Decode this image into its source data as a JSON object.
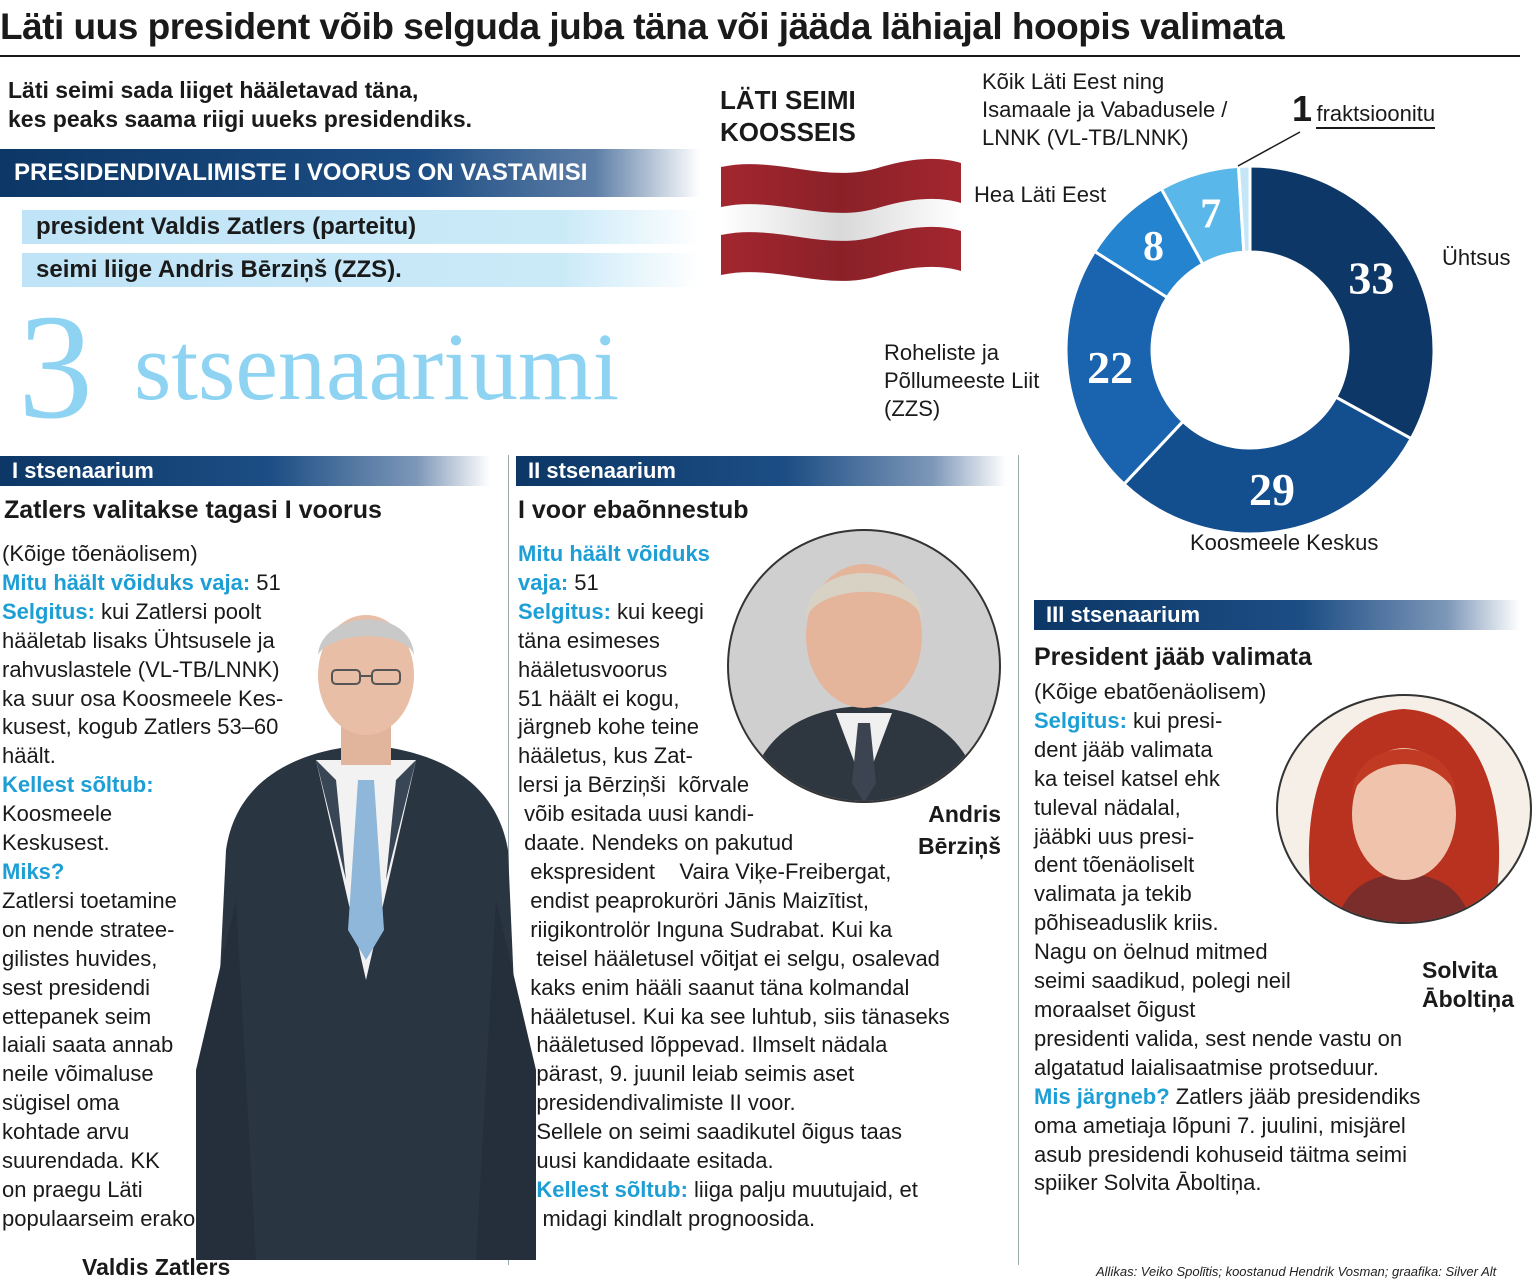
{
  "headline": "Läti uus president võib selguda juba täna või jääda lähiajal hoopis valimata",
  "intro": [
    "Läti seimi sada liiget hääletavad täna,",
    "kes peaks saama riigi uueks presidendiks."
  ],
  "round_title": "PRESIDENDIVALIMISTE I VOORUS ON VASTAMISI",
  "candidates": [
    "president Valdis Zatlers (parteitu)",
    "seimi liige Andris Bērziņš (ZZS)."
  ],
  "scenarios_count": "3",
  "scenarios_word": "stsenaariumi",
  "colors": {
    "navy": "#0c3766",
    "accent_blue": "#1d9fd6",
    "light_blue": "#8fd3f3",
    "flag_red": "#a3262f"
  },
  "scenario1": {
    "band": "I stsenaarium",
    "heading": "Zatlers valitakse tagasi I voorus",
    "lines": [
      [
        {
          "t": "(Kõige tõenäolisem)"
        }
      ],
      [
        {
          "t": "Mitu häält võiduks vaja:",
          "h": true
        },
        {
          "t": " 51"
        }
      ],
      [
        {
          "t": "Selgitus:",
          "h": true
        },
        {
          "t": " kui Zatlersi poolt"
        }
      ],
      [
        {
          "t": "hääletab lisaks Ühtsusele ja"
        }
      ],
      [
        {
          "t": "rahvuslastele (VL-TB/LNNK)"
        }
      ],
      [
        {
          "t": "ka suur osa Koosmeele Kes-"
        }
      ],
      [
        {
          "t": "kusest, kogub Zatlers 53–60"
        }
      ],
      [
        {
          "t": "häält."
        }
      ],
      [
        {
          "t": "Kellest sõltub:",
          "h": true
        }
      ],
      [
        {
          "t": "Koosmeele"
        }
      ],
      [
        {
          "t": "Keskusest."
        }
      ],
      [
        {
          "t": "Miks?",
          "h": true
        }
      ],
      [
        {
          "t": "Zatlersi toetamine"
        }
      ],
      [
        {
          "t": "on nende stratee-"
        }
      ],
      [
        {
          "t": "gilistes huvides,"
        }
      ],
      [
        {
          "t": "sest presidendi"
        }
      ],
      [
        {
          "t": "ettepanek seim"
        }
      ],
      [
        {
          "t": "laiali saata annab"
        }
      ],
      [
        {
          "t": "neile võimaluse"
        }
      ],
      [
        {
          "t": "sügisel oma"
        }
      ],
      [
        {
          "t": "kohtade arvu"
        }
      ],
      [
        {
          "t": "suurendada. KK"
        }
      ],
      [
        {
          "t": "on praegu Läti"
        }
      ],
      [
        {
          "t": "populaarseim erakond."
        }
      ]
    ],
    "photo_caption": "Valdis Zatlers"
  },
  "scenario2": {
    "band": "II stsenaarium",
    "heading": "I voor ebaõnnestub",
    "lines": [
      [
        {
          "t": "Mitu häält võiduks",
          "h": true
        }
      ],
      [
        {
          "t": "vaja:",
          "h": true
        },
        {
          "t": " 51"
        }
      ],
      [
        {
          "t": "Selgitus:",
          "h": true
        },
        {
          "t": " kui keegi"
        }
      ],
      [
        {
          "t": "täna esimeses"
        }
      ],
      [
        {
          "t": "hääletusvoorus"
        }
      ],
      [
        {
          "t": "51 häält ei kogu,"
        }
      ],
      [
        {
          "t": "järgneb kohe teine"
        }
      ],
      [
        {
          "t": "hääletus, kus Zat-"
        }
      ],
      [
        {
          "t": "lersi ja Bērziņši  kõrvale"
        }
      ],
      [
        {
          "t": " võib esitada uusi kandi-"
        }
      ],
      [
        {
          "t": " daate. Nendeks on pakutud"
        }
      ],
      [
        {
          "t": "  ekspresident    Vaira Viķe-Freibergat,"
        }
      ],
      [
        {
          "t": "  endist peaprokuröri Jānis Maizītist,"
        }
      ],
      [
        {
          "t": "  riigikontrolör Inguna Sudrabat. Kui ka"
        }
      ],
      [
        {
          "t": "   teisel hääletusel võitjat ei selgu, osalevad"
        }
      ],
      [
        {
          "t": "  kaks enim hääli saanut täna kolmandal"
        }
      ],
      [
        {
          "t": "  hääletusel. Kui ka see luhtub, siis tänaseks"
        }
      ],
      [
        {
          "t": "   hääletused lõppevad. Ilmselt nädala"
        }
      ],
      [
        {
          "t": "   pärast, 9. juunil leiab seimis aset"
        }
      ],
      [
        {
          "t": "   presidendivalimiste II voor."
        }
      ],
      [
        {
          "t": "   Sellele on seimi saadikutel õigus taas"
        }
      ],
      [
        {
          "t": "   uusi kandidaate esitada."
        }
      ],
      [
        {
          "t": "   Kellest sõltub:",
          "h": true
        },
        {
          "t": " liiga palju muutujaid, et"
        }
      ],
      [
        {
          "t": "    midagi kindlalt prognoosida."
        }
      ]
    ],
    "photo_caption": [
      "Andris",
      "Bērziņš"
    ]
  },
  "scenario3": {
    "band": "III stsenaarium",
    "heading": "President jääb valimata",
    "lines": [
      [
        {
          "t": "(Kõige ebatõenäolisem)"
        }
      ],
      [
        {
          "t": "Selgitus:",
          "h": true
        },
        {
          "t": " kui presi-"
        }
      ],
      [
        {
          "t": "dent jääb valimata"
        }
      ],
      [
        {
          "t": "ka teisel katsel ehk"
        }
      ],
      [
        {
          "t": "tuleval nädalal,"
        }
      ],
      [
        {
          "t": "jääbki uus presi-"
        }
      ],
      [
        {
          "t": "dent tõenäoliselt"
        }
      ],
      [
        {
          "t": "valimata ja tekib"
        }
      ],
      [
        {
          "t": "põhiseaduslik kriis."
        }
      ],
      [
        {
          "t": "Nagu on öelnud mitmed"
        }
      ],
      [
        {
          "t": "seimi saadikud, polegi neil"
        }
      ],
      [
        {
          "t": "moraalset õigust"
        }
      ],
      [
        {
          "t": "presidenti valida, sest nende vastu on"
        }
      ],
      [
        {
          "t": "algatatud laialisaatmise protseduur."
        }
      ],
      [
        {
          "t": "Mis järgneb?",
          "h": true
        },
        {
          "t": " Zatlers jääb presidendiks"
        }
      ],
      [
        {
          "t": "oma ametiaja lõpuni 7. juulini, misjärel"
        }
      ],
      [
        {
          "t": "asub presidendi kohuseid täitma seimi"
        }
      ],
      [
        {
          "t": "spiiker Solvita Āboltiņa."
        }
      ]
    ],
    "photo_caption": [
      "Solvita",
      "Āboltiņa"
    ]
  },
  "chart_data": {
    "type": "pie",
    "title": "LÄTI SEIMI KOOSSEIS",
    "donut": true,
    "slices": [
      {
        "label": "Ühtsus",
        "value": 33,
        "color": "#0c3766"
      },
      {
        "label": "Koosmeele Keskus",
        "value": 29,
        "color": "#134e8f"
      },
      {
        "label": "Roheliste ja Põllumeeste Liit (ZZS)",
        "value": 22,
        "color": "#1a63ae"
      },
      {
        "label": "Hea Läti Eest",
        "value": 8,
        "color": "#2584cf"
      },
      {
        "label": "Kõik Läti Eest ning Isamaale ja Vabadusele / LNNK (VL-TB/LNNK)",
        "value": 7,
        "color": "#5ab7e9"
      },
      {
        "label": "fraktsioonitu",
        "value": 1,
        "color": "#c5e6f7"
      }
    ]
  },
  "chart_labels": {
    "title": [
      "LÄTI SEIMI",
      "KOOSSEIS"
    ],
    "vltb": [
      "Kõik Läti Eest ning",
      "Isamaale ja Vabadusele /",
      "LNNK (VL-TB/LNNK)"
    ],
    "fraktsioonitu_num": "1",
    "fraktsioonitu": "fraktsioonitu",
    "hea": "Hea Läti Eest",
    "uhtsus": "Ühtsus",
    "zzs": [
      "Roheliste ja",
      "Põllumeeste Liit",
      " (ZZS)"
    ],
    "koosmeele": "Koosmeele Keskus"
  },
  "source": "Allikas: Veiko Spolītis; koostanud Hendrik Vosman; graafika: Silver Alt"
}
